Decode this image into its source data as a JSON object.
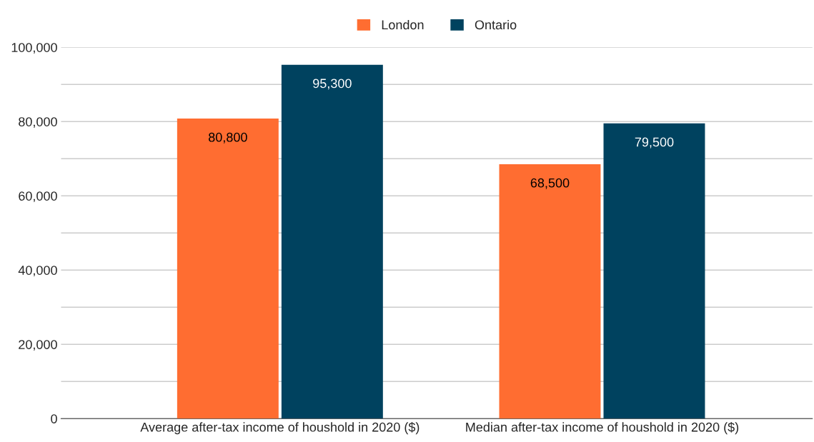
{
  "chart_data": {
    "type": "bar",
    "categories": [
      "Average after-tax income of houshold in 2020 ($)",
      "Median after-tax income of houshold in 2020 ($)"
    ],
    "series": [
      {
        "name": "London",
        "color": "#ff6d31",
        "values": [
          80800,
          68500
        ],
        "value_labels": [
          "80,800",
          "68,500"
        ]
      },
      {
        "name": "Ontario",
        "color": "#00425f",
        "values": [
          95300,
          79500
        ],
        "value_labels": [
          "95,300",
          "79,500"
        ]
      }
    ],
    "ylim": [
      0,
      100000
    ],
    "yticks": [
      {
        "value": 0,
        "label": "0"
      },
      {
        "value": 10000,
        "label": null
      },
      {
        "value": 20000,
        "label": "20,000"
      },
      {
        "value": 30000,
        "label": null
      },
      {
        "value": 40000,
        "label": "40,000"
      },
      {
        "value": 50000,
        "label": null
      },
      {
        "value": 60000,
        "label": "60,000"
      },
      {
        "value": 70000,
        "label": null
      },
      {
        "value": 80000,
        "label": "80,000"
      },
      {
        "value": 90000,
        "label": null
      },
      {
        "value": 100000,
        "label": "100,000"
      }
    ],
    "grid": "y",
    "legend": "top"
  }
}
